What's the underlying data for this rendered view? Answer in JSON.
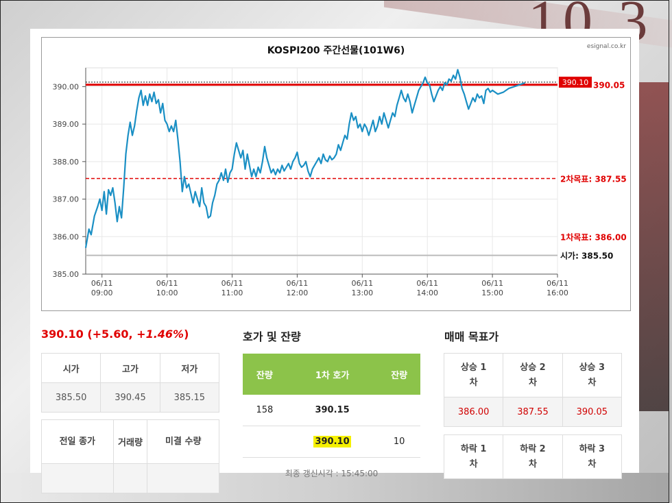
{
  "page": {
    "chart_title": "KOSPI200 주간선물(101W6)",
    "chart_source": "esignal.co.kr"
  },
  "chart_data": {
    "type": "line",
    "title": "KOSPI200 주간선물(101W6)",
    "ylim": [
      385.0,
      390.5
    ],
    "y_ticks": [
      "385.00",
      "386.00",
      "387.00",
      "388.00",
      "389.00",
      "390.00"
    ],
    "x_ticks": [
      {
        "date": "06/11",
        "time": "09:00"
      },
      {
        "date": "06/11",
        "time": "10:00"
      },
      {
        "date": "06/11",
        "time": "11:00"
      },
      {
        "date": "06/11",
        "time": "12:00"
      },
      {
        "date": "06/11",
        "time": "13:00"
      },
      {
        "date": "06/11",
        "time": "14:00"
      },
      {
        "date": "06/11",
        "time": "15:00"
      },
      {
        "date": "06/11",
        "time": "16:00"
      }
    ],
    "grid": true,
    "series": [
      {
        "color": "#1a8fc4",
        "points": [
          [
            "08:45",
            385.7
          ],
          [
            "08:48",
            386.2
          ],
          [
            "08:50",
            386.05
          ],
          [
            "08:53",
            386.55
          ],
          [
            "08:56",
            386.8
          ],
          [
            "08:58",
            387.0
          ],
          [
            "09:00",
            386.7
          ],
          [
            "09:02",
            387.2
          ],
          [
            "09:04",
            386.6
          ],
          [
            "09:06",
            387.25
          ],
          [
            "09:08",
            387.1
          ],
          [
            "09:10",
            387.3
          ],
          [
            "09:12",
            386.9
          ],
          [
            "09:14",
            386.4
          ],
          [
            "09:16",
            386.8
          ],
          [
            "09:18",
            386.5
          ],
          [
            "09:20",
            387.3
          ],
          [
            "09:22",
            388.2
          ],
          [
            "09:24",
            388.7
          ],
          [
            "09:26",
            389.05
          ],
          [
            "09:28",
            388.7
          ],
          [
            "09:30",
            388.95
          ],
          [
            "09:32",
            389.35
          ],
          [
            "09:34",
            389.7
          ],
          [
            "09:36",
            389.9
          ],
          [
            "09:38",
            389.5
          ],
          [
            "09:40",
            389.75
          ],
          [
            "09:42",
            389.5
          ],
          [
            "09:44",
            389.8
          ],
          [
            "09:46",
            389.6
          ],
          [
            "09:48",
            389.85
          ],
          [
            "09:50",
            389.55
          ],
          [
            "09:52",
            389.65
          ],
          [
            "09:54",
            389.3
          ],
          [
            "09:56",
            389.55
          ],
          [
            "09:58",
            389.1
          ],
          [
            "10:00",
            389.0
          ],
          [
            "10:02",
            388.8
          ],
          [
            "10:04",
            388.95
          ],
          [
            "10:06",
            388.8
          ],
          [
            "10:08",
            389.1
          ],
          [
            "10:10",
            388.6
          ],
          [
            "10:12",
            388.0
          ],
          [
            "10:14",
            387.2
          ],
          [
            "10:16",
            387.6
          ],
          [
            "10:18",
            387.3
          ],
          [
            "10:20",
            387.4
          ],
          [
            "10:22",
            387.15
          ],
          [
            "10:24",
            386.9
          ],
          [
            "10:26",
            387.2
          ],
          [
            "10:28",
            387.0
          ],
          [
            "10:30",
            386.8
          ],
          [
            "10:32",
            387.3
          ],
          [
            "10:34",
            386.9
          ],
          [
            "10:36",
            386.8
          ],
          [
            "10:38",
            386.5
          ],
          [
            "10:40",
            386.55
          ],
          [
            "10:42",
            386.9
          ],
          [
            "10:44",
            387.1
          ],
          [
            "10:46",
            387.4
          ],
          [
            "10:48",
            387.5
          ],
          [
            "10:50",
            387.7
          ],
          [
            "10:52",
            387.5
          ],
          [
            "10:54",
            387.8
          ],
          [
            "10:56",
            387.45
          ],
          [
            "10:58",
            387.7
          ],
          [
            "11:00",
            387.8
          ],
          [
            "11:02",
            388.2
          ],
          [
            "11:04",
            388.5
          ],
          [
            "11:06",
            388.3
          ],
          [
            "11:08",
            388.1
          ],
          [
            "11:10",
            388.3
          ],
          [
            "11:12",
            387.8
          ],
          [
            "11:14",
            388.2
          ],
          [
            "11:16",
            387.9
          ],
          [
            "11:18",
            387.6
          ],
          [
            "11:20",
            387.8
          ],
          [
            "11:22",
            387.6
          ],
          [
            "11:24",
            387.85
          ],
          [
            "11:26",
            387.7
          ],
          [
            "11:28",
            388.0
          ],
          [
            "11:30",
            388.4
          ],
          [
            "11:32",
            388.1
          ],
          [
            "11:34",
            387.9
          ],
          [
            "11:36",
            387.7
          ],
          [
            "11:38",
            387.8
          ],
          [
            "11:40",
            387.65
          ],
          [
            "11:42",
            387.8
          ],
          [
            "11:44",
            387.7
          ],
          [
            "11:46",
            387.9
          ],
          [
            "11:48",
            387.75
          ],
          [
            "11:50",
            387.85
          ],
          [
            "11:52",
            387.95
          ],
          [
            "11:54",
            387.8
          ],
          [
            "11:56",
            388.0
          ],
          [
            "11:58",
            388.1
          ],
          [
            "12:00",
            388.25
          ],
          [
            "12:02",
            387.95
          ],
          [
            "12:04",
            387.85
          ],
          [
            "12:06",
            387.9
          ],
          [
            "12:08",
            388.0
          ],
          [
            "12:10",
            387.75
          ],
          [
            "12:12",
            387.6
          ],
          [
            "12:14",
            387.8
          ],
          [
            "12:16",
            387.9
          ],
          [
            "12:18",
            388.0
          ],
          [
            "12:20",
            388.1
          ],
          [
            "12:22",
            387.95
          ],
          [
            "12:24",
            388.2
          ],
          [
            "12:26",
            388.05
          ],
          [
            "12:28",
            388.0
          ],
          [
            "12:30",
            388.15
          ],
          [
            "12:32",
            388.05
          ],
          [
            "12:34",
            388.1
          ],
          [
            "12:36",
            388.2
          ],
          [
            "12:38",
            388.45
          ],
          [
            "12:40",
            388.3
          ],
          [
            "12:42",
            388.5
          ],
          [
            "12:44",
            388.7
          ],
          [
            "12:46",
            388.6
          ],
          [
            "12:48",
            389.0
          ],
          [
            "12:50",
            389.3
          ],
          [
            "12:52",
            389.1
          ],
          [
            "12:54",
            389.2
          ],
          [
            "12:56",
            388.9
          ],
          [
            "12:58",
            389.0
          ],
          [
            "13:00",
            388.8
          ],
          [
            "13:02",
            389.0
          ],
          [
            "13:04",
            388.9
          ],
          [
            "13:06",
            388.7
          ],
          [
            "13:08",
            388.9
          ],
          [
            "13:10",
            389.1
          ],
          [
            "13:12",
            388.8
          ],
          [
            "13:14",
            388.95
          ],
          [
            "13:16",
            389.2
          ],
          [
            "13:18",
            389.0
          ],
          [
            "13:20",
            389.3
          ],
          [
            "13:22",
            389.1
          ],
          [
            "13:24",
            388.9
          ],
          [
            "13:26",
            389.1
          ],
          [
            "13:28",
            389.3
          ],
          [
            "13:30",
            389.2
          ],
          [
            "13:32",
            389.5
          ],
          [
            "13:34",
            389.7
          ],
          [
            "13:36",
            389.9
          ],
          [
            "13:38",
            389.7
          ],
          [
            "13:40",
            389.6
          ],
          [
            "13:42",
            389.8
          ],
          [
            "13:44",
            389.6
          ],
          [
            "13:46",
            389.3
          ],
          [
            "13:48",
            389.5
          ],
          [
            "13:50",
            389.7
          ],
          [
            "13:52",
            389.9
          ],
          [
            "13:54",
            390.0
          ],
          [
            "13:56",
            390.1
          ],
          [
            "13:58",
            390.25
          ],
          [
            "14:00",
            390.1
          ],
          [
            "14:02",
            390.05
          ],
          [
            "14:04",
            389.8
          ],
          [
            "14:06",
            389.6
          ],
          [
            "14:08",
            389.75
          ],
          [
            "14:10",
            389.9
          ],
          [
            "14:12",
            390.0
          ],
          [
            "14:14",
            389.9
          ],
          [
            "14:16",
            390.1
          ],
          [
            "14:18",
            390.05
          ],
          [
            "14:20",
            390.2
          ],
          [
            "14:22",
            390.15
          ],
          [
            "14:24",
            390.3
          ],
          [
            "14:26",
            390.2
          ],
          [
            "14:28",
            390.45
          ],
          [
            "14:30",
            390.25
          ],
          [
            "14:32",
            389.95
          ],
          [
            "14:34",
            389.8
          ],
          [
            "14:36",
            389.6
          ],
          [
            "14:38",
            389.4
          ],
          [
            "14:40",
            389.55
          ],
          [
            "14:42",
            389.7
          ],
          [
            "14:44",
            389.6
          ],
          [
            "14:46",
            389.8
          ],
          [
            "14:48",
            389.7
          ],
          [
            "14:50",
            389.75
          ],
          [
            "14:52",
            389.55
          ],
          [
            "14:54",
            389.9
          ],
          [
            "14:56",
            389.95
          ],
          [
            "14:58",
            389.85
          ],
          [
            "15:00",
            389.9
          ],
          [
            "15:05",
            389.8
          ],
          [
            "15:10",
            389.85
          ],
          [
            "15:15",
            389.95
          ],
          [
            "15:20",
            390.0
          ],
          [
            "15:25",
            390.05
          ],
          [
            "15:30",
            390.1
          ]
        ]
      }
    ],
    "reference_lines": [
      {
        "label": "390.10",
        "value": 390.1,
        "style": "tag"
      },
      {
        "label": "390.05",
        "value": 390.05,
        "style": "solid-red"
      },
      {
        "label": "2차목표: 387.55",
        "value": 387.55,
        "style": "dashed-red"
      },
      {
        "label": "1차목표: 386.00",
        "value": 386.0,
        "style": "none"
      },
      {
        "label": "시가: 385.50",
        "value": 385.5,
        "style": "solid-gray"
      }
    ]
  },
  "summary": {
    "price": "390.10",
    "change": "(+5.60, ",
    "pct": "+1.46%",
    "close_paren": ")"
  },
  "ohlc": {
    "headers": [
      "시가",
      "고가",
      "저가"
    ],
    "values": [
      "385.50",
      "390.45",
      "385.15"
    ]
  },
  "stats": {
    "headers": [
      "전일 종가",
      "거래량",
      "미결 수량"
    ]
  },
  "orderbook": {
    "title": "호가 및 잔량",
    "headers": [
      "잔량",
      "1차 호가",
      "잔량"
    ],
    "rows": [
      [
        "158",
        "390.15",
        ""
      ],
      [
        "",
        "390.10",
        "10"
      ]
    ],
    "footer": "최종 갱신시각 : 15:45:00"
  },
  "targets": {
    "title": "매매 목표가",
    "up_headers": [
      "상승 1차",
      "상승 2차",
      "상승 3차"
    ],
    "up_values": [
      "386.00",
      "387.55",
      "390.05"
    ],
    "down_headers": [
      "하락 1차",
      "하락 2차",
      "하락 3차"
    ]
  }
}
